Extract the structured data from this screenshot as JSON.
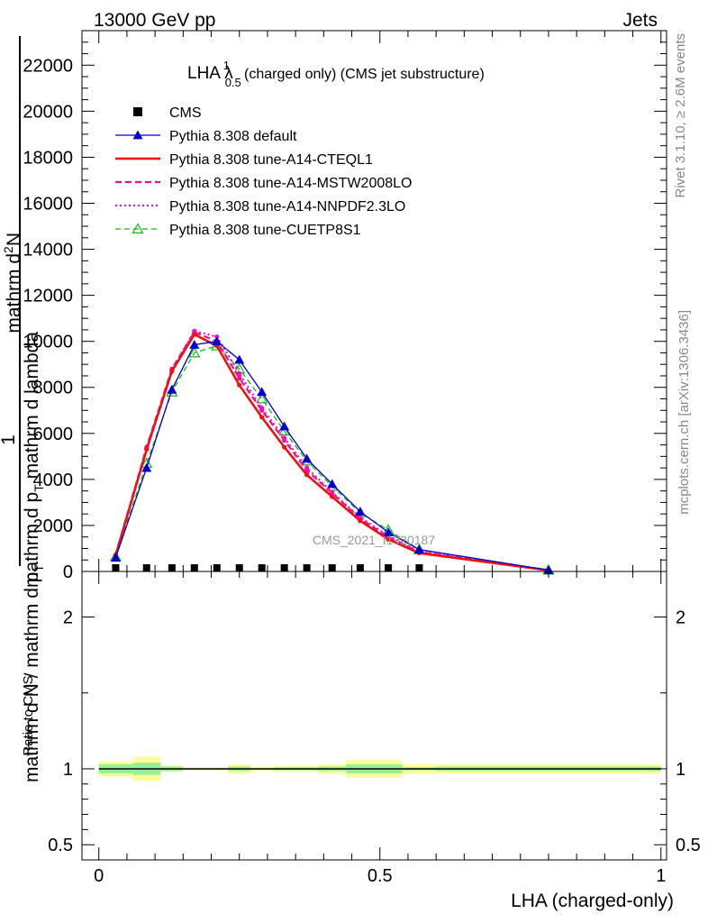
{
  "header": {
    "left": "13000 GeV pp",
    "right": "Jets"
  },
  "side": {
    "rivet": "Rivet 3.1.10, ≥ 2.6M events",
    "mcplots": "mcplots.cern.ch [arXiv:1306.3436]"
  },
  "watermark": "CMS_2021_I1920187",
  "colors": {
    "cms": "#000000",
    "default": "#0000cc",
    "cteql1": "#ee1111",
    "mstw": "#ee1188",
    "nnpdf": "#ee11cc",
    "cuetp8s1": "#11bb11",
    "band_inner": "#99ee99",
    "band_outer": "#ffff99"
  },
  "chart_data": [
    {
      "type": "line",
      "title_main": "LHA λ",
      "title_sup": "1",
      "title_sub": "0.5",
      "title_rest": "(charged only) (CMS jet substructure)",
      "ylabel": {
        "line1": "mathrm d",
        "line1sup": "2",
        "line1b": "N",
        "line2": "mathrm d p",
        "line2sub": "T",
        "line2b": " mathrm d lambda",
        "one": "1",
        "line3": "mathrm d N / mathrm d p",
        "line3sub": "T"
      },
      "xlim": [
        -0.03,
        1.01
      ],
      "ylim": [
        0,
        23500
      ],
      "yticks": [
        2000,
        4000,
        6000,
        8000,
        10000,
        12000,
        14000,
        16000,
        18000,
        20000,
        22000
      ],
      "ytick_labels": [
        "2000",
        "4000",
        "6000",
        "8000",
        "10000",
        "12000",
        "14000",
        "16000",
        "18000",
        "20000",
        "22000"
      ],
      "bottom_tick_label": "0",
      "legend": [
        "CMS",
        "Pythia 8.308 default",
        "Pythia 8.308 tune-A14-CTEQL1",
        "Pythia 8.308 tune-A14-MSTW2008LO",
        "Pythia 8.308 tune-A14-NNPDF2.3LO",
        "Pythia 8.308 tune-CUETP8S1"
      ],
      "series": [
        {
          "name": "CMS",
          "x": [
            0.03,
            0.085,
            0.13,
            0.17,
            0.21,
            0.25,
            0.29,
            0.33,
            0.37,
            0.415,
            0.465,
            0.515,
            0.57
          ],
          "y": [
            50,
            50,
            50,
            50,
            50,
            50,
            50,
            50,
            50,
            50,
            50,
            50,
            50
          ]
        },
        {
          "name": "Pythia 8.308 default",
          "x": [
            0.03,
            0.085,
            0.13,
            0.17,
            0.21,
            0.25,
            0.29,
            0.33,
            0.37,
            0.415,
            0.465,
            0.515,
            0.57,
            0.8
          ],
          "y": [
            600,
            4500,
            7900,
            9850,
            10000,
            9200,
            7800,
            6300,
            4900,
            3800,
            2600,
            1700,
            950,
            60
          ]
        },
        {
          "name": "Pythia 8.308 tune-A14-CTEQL1",
          "x": [
            0.03,
            0.085,
            0.13,
            0.17,
            0.21,
            0.25,
            0.29,
            0.33,
            0.37,
            0.415,
            0.465,
            0.515,
            0.57,
            0.8
          ],
          "y": [
            700,
            5300,
            8700,
            10300,
            9800,
            8100,
            6700,
            5400,
            4200,
            3250,
            2200,
            1400,
            800,
            50
          ]
        },
        {
          "name": "Pythia 8.308 tune-A14-MSTW2008LO",
          "x": [
            0.03,
            0.085,
            0.13,
            0.17,
            0.21,
            0.25,
            0.29,
            0.33,
            0.37,
            0.415,
            0.465,
            0.515,
            0.57,
            0.8
          ],
          "y": [
            720,
            5400,
            8800,
            10400,
            10000,
            8400,
            7000,
            5700,
            4400,
            3400,
            2300,
            1500,
            850,
            55
          ]
        },
        {
          "name": "Pythia 8.308 tune-A14-NNPDF2.3LO",
          "x": [
            0.03,
            0.085,
            0.13,
            0.17,
            0.21,
            0.25,
            0.29,
            0.33,
            0.37,
            0.415,
            0.465,
            0.515,
            0.57,
            0.8
          ],
          "y": [
            710,
            5350,
            8750,
            10450,
            10200,
            8600,
            7100,
            5800,
            4500,
            3450,
            2350,
            1550,
            870,
            55
          ]
        },
        {
          "name": "Pythia 8.308 tune-CUETP8S1",
          "x": [
            0.03,
            0.085,
            0.13,
            0.17,
            0.21,
            0.25,
            0.29,
            0.33,
            0.37,
            0.415,
            0.465,
            0.515,
            0.57,
            0.8
          ],
          "y": [
            640,
            4700,
            7800,
            9500,
            9800,
            8800,
            7500,
            6100,
            4800,
            3700,
            2550,
            1800,
            950,
            60
          ]
        }
      ]
    },
    {
      "type": "area",
      "ylabel": "Ratio to CMS",
      "xlabel": "LHA (charged-only)",
      "xlim": [
        -0.03,
        1.01
      ],
      "ylim": [
        0.4,
        2.3
      ],
      "yticks": [
        0.5,
        1,
        2
      ],
      "ytick_labels": [
        "0.5",
        "1",
        "2"
      ],
      "xticks": [
        0,
        0.5,
        1
      ],
      "xtick_labels": [
        "0",
        "0.5",
        "1"
      ],
      "bands": {
        "bin_edges": [
          0,
          0.06,
          0.11,
          0.15,
          0.19,
          0.23,
          0.27,
          0.31,
          0.35,
          0.39,
          0.44,
          0.49,
          0.54,
          0.6,
          1.0
        ],
        "inner_lo": [
          0.97,
          0.96,
          0.985,
          0.995,
          0.995,
          0.985,
          0.995,
          0.99,
          0.99,
          0.985,
          0.97,
          0.97,
          0.99,
          0.985
        ],
        "inner_hi": [
          1.03,
          1.04,
          1.015,
          1.005,
          1.005,
          1.015,
          1.005,
          1.01,
          1.01,
          1.015,
          1.03,
          1.03,
          1.01,
          1.015
        ],
        "outer_lo": [
          0.95,
          0.92,
          0.98,
          0.99,
          0.99,
          0.97,
          0.985,
          0.98,
          0.98,
          0.97,
          0.94,
          0.94,
          0.97,
          0.97
        ],
        "outer_hi": [
          1.05,
          1.08,
          1.02,
          1.01,
          1.01,
          1.03,
          1.015,
          1.02,
          1.02,
          1.03,
          1.06,
          1.06,
          1.03,
          1.03
        ]
      }
    }
  ]
}
